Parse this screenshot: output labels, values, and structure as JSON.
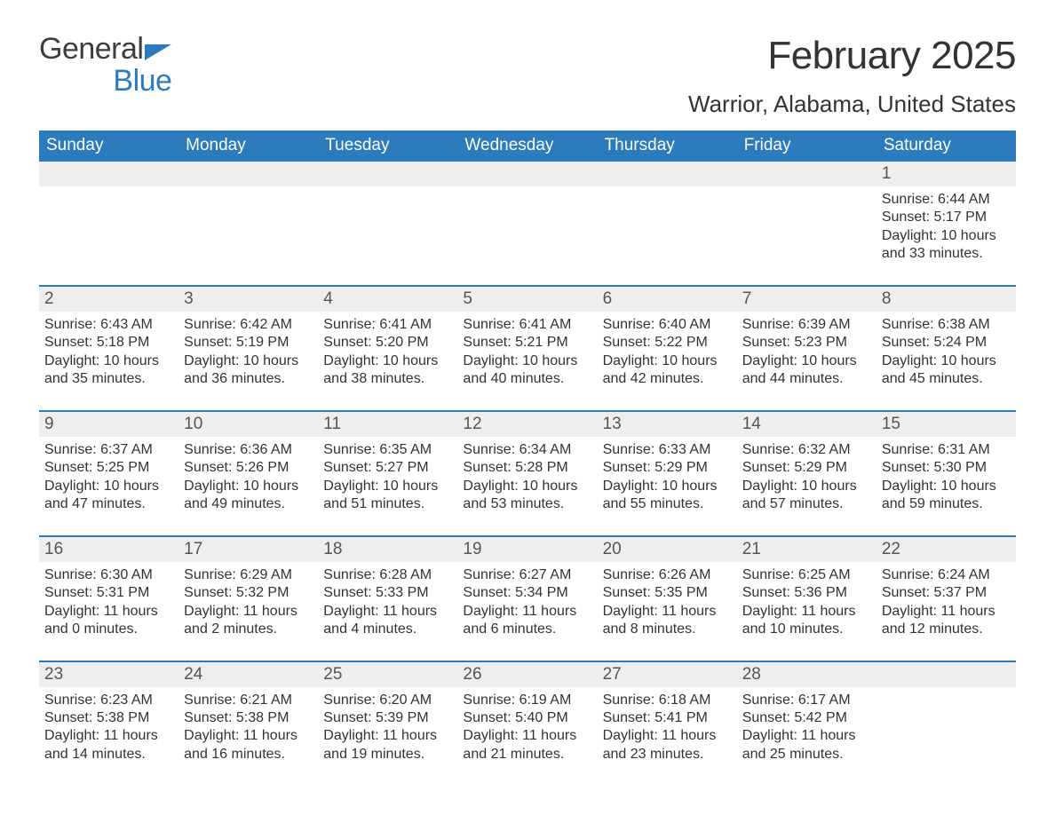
{
  "brand": {
    "general": "General",
    "blue": "Blue",
    "flag_color": "#2b7bbd"
  },
  "title": "February 2025",
  "location": "Warrior, Alabama, United States",
  "colors": {
    "header_bg": "#2b7bbd",
    "header_text": "#ffffff",
    "daynum_bg": "#eeeeee",
    "week_border": "#2b7bbd",
    "body_text": "#333333",
    "background": "#ffffff"
  },
  "fonts": {
    "title_size_pt": 33,
    "location_size_pt": 20,
    "dow_size_pt": 14,
    "cell_size_pt": 12
  },
  "dow": [
    "Sunday",
    "Monday",
    "Tuesday",
    "Wednesday",
    "Thursday",
    "Friday",
    "Saturday"
  ],
  "weeks": [
    [
      {},
      {},
      {},
      {},
      {},
      {},
      {
        "n": "1",
        "sunrise": "Sunrise: 6:44 AM",
        "sunset": "Sunset: 5:17 PM",
        "daylight": "Daylight: 10 hours and 33 minutes."
      }
    ],
    [
      {
        "n": "2",
        "sunrise": "Sunrise: 6:43 AM",
        "sunset": "Sunset: 5:18 PM",
        "daylight": "Daylight: 10 hours and 35 minutes."
      },
      {
        "n": "3",
        "sunrise": "Sunrise: 6:42 AM",
        "sunset": "Sunset: 5:19 PM",
        "daylight": "Daylight: 10 hours and 36 minutes."
      },
      {
        "n": "4",
        "sunrise": "Sunrise: 6:41 AM",
        "sunset": "Sunset: 5:20 PM",
        "daylight": "Daylight: 10 hours and 38 minutes."
      },
      {
        "n": "5",
        "sunrise": "Sunrise: 6:41 AM",
        "sunset": "Sunset: 5:21 PM",
        "daylight": "Daylight: 10 hours and 40 minutes."
      },
      {
        "n": "6",
        "sunrise": "Sunrise: 6:40 AM",
        "sunset": "Sunset: 5:22 PM",
        "daylight": "Daylight: 10 hours and 42 minutes."
      },
      {
        "n": "7",
        "sunrise": "Sunrise: 6:39 AM",
        "sunset": "Sunset: 5:23 PM",
        "daylight": "Daylight: 10 hours and 44 minutes."
      },
      {
        "n": "8",
        "sunrise": "Sunrise: 6:38 AM",
        "sunset": "Sunset: 5:24 PM",
        "daylight": "Daylight: 10 hours and 45 minutes."
      }
    ],
    [
      {
        "n": "9",
        "sunrise": "Sunrise: 6:37 AM",
        "sunset": "Sunset: 5:25 PM",
        "daylight": "Daylight: 10 hours and 47 minutes."
      },
      {
        "n": "10",
        "sunrise": "Sunrise: 6:36 AM",
        "sunset": "Sunset: 5:26 PM",
        "daylight": "Daylight: 10 hours and 49 minutes."
      },
      {
        "n": "11",
        "sunrise": "Sunrise: 6:35 AM",
        "sunset": "Sunset: 5:27 PM",
        "daylight": "Daylight: 10 hours and 51 minutes."
      },
      {
        "n": "12",
        "sunrise": "Sunrise: 6:34 AM",
        "sunset": "Sunset: 5:28 PM",
        "daylight": "Daylight: 10 hours and 53 minutes."
      },
      {
        "n": "13",
        "sunrise": "Sunrise: 6:33 AM",
        "sunset": "Sunset: 5:29 PM",
        "daylight": "Daylight: 10 hours and 55 minutes."
      },
      {
        "n": "14",
        "sunrise": "Sunrise: 6:32 AM",
        "sunset": "Sunset: 5:29 PM",
        "daylight": "Daylight: 10 hours and 57 minutes."
      },
      {
        "n": "15",
        "sunrise": "Sunrise: 6:31 AM",
        "sunset": "Sunset: 5:30 PM",
        "daylight": "Daylight: 10 hours and 59 minutes."
      }
    ],
    [
      {
        "n": "16",
        "sunrise": "Sunrise: 6:30 AM",
        "sunset": "Sunset: 5:31 PM",
        "daylight": "Daylight: 11 hours and 0 minutes."
      },
      {
        "n": "17",
        "sunrise": "Sunrise: 6:29 AM",
        "sunset": "Sunset: 5:32 PM",
        "daylight": "Daylight: 11 hours and 2 minutes."
      },
      {
        "n": "18",
        "sunrise": "Sunrise: 6:28 AM",
        "sunset": "Sunset: 5:33 PM",
        "daylight": "Daylight: 11 hours and 4 minutes."
      },
      {
        "n": "19",
        "sunrise": "Sunrise: 6:27 AM",
        "sunset": "Sunset: 5:34 PM",
        "daylight": "Daylight: 11 hours and 6 minutes."
      },
      {
        "n": "20",
        "sunrise": "Sunrise: 6:26 AM",
        "sunset": "Sunset: 5:35 PM",
        "daylight": "Daylight: 11 hours and 8 minutes."
      },
      {
        "n": "21",
        "sunrise": "Sunrise: 6:25 AM",
        "sunset": "Sunset: 5:36 PM",
        "daylight": "Daylight: 11 hours and 10 minutes."
      },
      {
        "n": "22",
        "sunrise": "Sunrise: 6:24 AM",
        "sunset": "Sunset: 5:37 PM",
        "daylight": "Daylight: 11 hours and 12 minutes."
      }
    ],
    [
      {
        "n": "23",
        "sunrise": "Sunrise: 6:23 AM",
        "sunset": "Sunset: 5:38 PM",
        "daylight": "Daylight: 11 hours and 14 minutes."
      },
      {
        "n": "24",
        "sunrise": "Sunrise: 6:21 AM",
        "sunset": "Sunset: 5:38 PM",
        "daylight": "Daylight: 11 hours and 16 minutes."
      },
      {
        "n": "25",
        "sunrise": "Sunrise: 6:20 AM",
        "sunset": "Sunset: 5:39 PM",
        "daylight": "Daylight: 11 hours and 19 minutes."
      },
      {
        "n": "26",
        "sunrise": "Sunrise: 6:19 AM",
        "sunset": "Sunset: 5:40 PM",
        "daylight": "Daylight: 11 hours and 21 minutes."
      },
      {
        "n": "27",
        "sunrise": "Sunrise: 6:18 AM",
        "sunset": "Sunset: 5:41 PM",
        "daylight": "Daylight: 11 hours and 23 minutes."
      },
      {
        "n": "28",
        "sunrise": "Sunrise: 6:17 AM",
        "sunset": "Sunset: 5:42 PM",
        "daylight": "Daylight: 11 hours and 25 minutes."
      },
      {}
    ]
  ]
}
